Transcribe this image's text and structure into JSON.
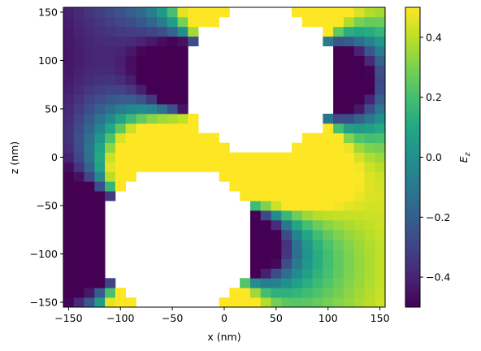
{
  "chart_data": {
    "type": "heatmap",
    "title": "",
    "xlabel": "x (nm)",
    "ylabel": "z (nm)",
    "xlim": [
      -155,
      155
    ],
    "ylim": [
      -155,
      155
    ],
    "xticks": [
      -150,
      -100,
      -50,
      0,
      50,
      100,
      150
    ],
    "yticks": [
      -150,
      -100,
      -50,
      0,
      50,
      100,
      150
    ],
    "xtick_labels": [
      "−150",
      "−100",
      "−50",
      "0",
      "50",
      "100",
      "150"
    ],
    "ytick_labels": [
      "−150",
      "−100",
      "−50",
      "0",
      "50",
      "100",
      "150"
    ],
    "grid": false,
    "colormap": "viridis",
    "cell_size_nm": 10,
    "masked_regions": [
      {
        "shape": "circle",
        "center": [
          35,
          80
        ],
        "radius": 75
      },
      {
        "shape": "circle",
        "center": [
          -45,
          -85
        ],
        "radius": 75
      }
    ],
    "colorbar": {
      "label": "E_z",
      "label_main": "E",
      "label_sub": "z",
      "range": [
        -0.5,
        0.5
      ],
      "ticks": [
        -0.4,
        -0.2,
        0.0,
        0.2,
        0.4
      ],
      "tick_labels": [
        "−0.4",
        "−0.2",
        "0.0",
        "0.2",
        "0.4"
      ]
    }
  }
}
